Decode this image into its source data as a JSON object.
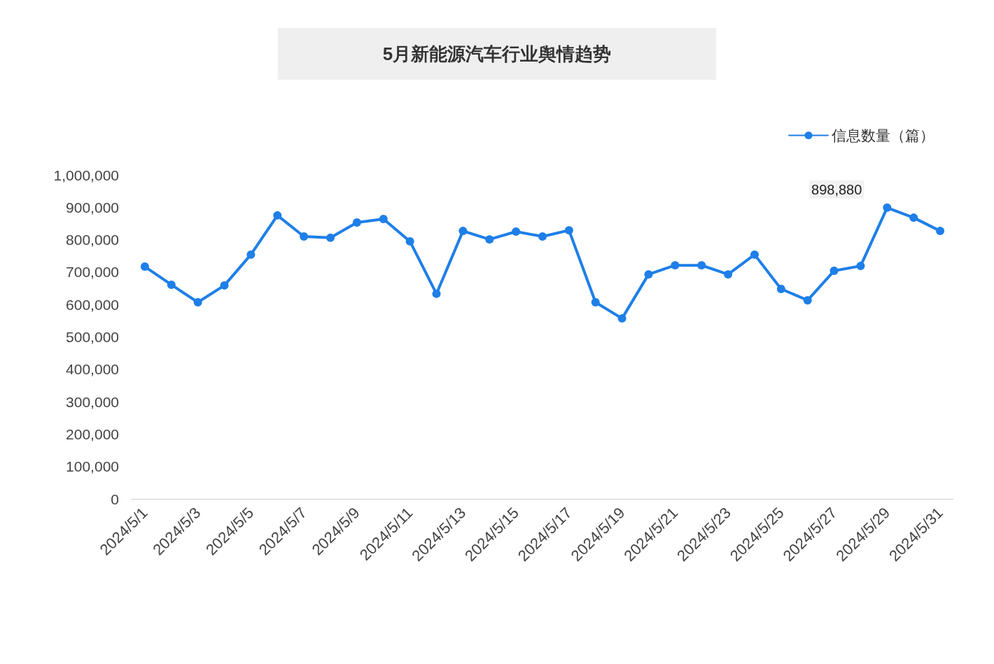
{
  "chart_data": {
    "type": "line",
    "title": "5月新能源汽车行业舆情趋势",
    "categories": [
      "2024/5/1",
      null,
      "2024/5/3",
      null,
      "2024/5/5",
      null,
      "2024/5/7",
      null,
      "2024/5/9",
      null,
      "2024/5/11",
      null,
      "2024/5/13",
      null,
      "2024/5/15",
      null,
      "2024/5/17",
      null,
      "2024/5/19",
      null,
      "2024/5/21",
      null,
      "2024/5/23",
      null,
      "2024/5/25",
      null,
      "2024/5/27",
      null,
      "2024/5/29",
      null,
      "2024/5/31"
    ],
    "series": [
      {
        "name": "信息数量（篇）",
        "color": "#1e7fe8",
        "values": [
          717000,
          661000,
          607000,
          659000,
          754000,
          875000,
          810000,
          806000,
          853000,
          864000,
          795000,
          633000,
          827000,
          801000,
          825000,
          810000,
          829000,
          607000,
          557000,
          693000,
          721000,
          721000,
          693000,
          754000,
          648000,
          613000,
          704000,
          719000,
          898880,
          868000,
          827000
        ],
        "value_labels": [
          null,
          null,
          null,
          null,
          null,
          null,
          null,
          null,
          null,
          null,
          null,
          null,
          null,
          null,
          null,
          null,
          null,
          null,
          null,
          null,
          null,
          null,
          null,
          null,
          null,
          null,
          null,
          null,
          "898,880",
          null,
          null
        ]
      }
    ],
    "ylim": [
      0,
      1000000
    ],
    "yticks": [
      0,
      {
        "value": 100000,
        "label": "100,000"
      },
      {
        "value": 200000,
        "label": "200,000"
      },
      {
        "value": 300000,
        "label": "300,000"
      },
      {
        "value": 400000,
        "label": "400,000"
      },
      {
        "value": 500000,
        "label": "500,000"
      },
      {
        "value": 600000,
        "label": "600,000"
      },
      {
        "value": 700000,
        "label": "700,000"
      },
      {
        "value": 800000,
        "label": "800,000"
      },
      {
        "value": 900000,
        "label": "900,000"
      },
      {
        "value": 1000000,
        "label": "1,000,000"
      }
    ],
    "grid": false,
    "legend": "top right",
    "marker": "circle",
    "line_style": "solid"
  }
}
